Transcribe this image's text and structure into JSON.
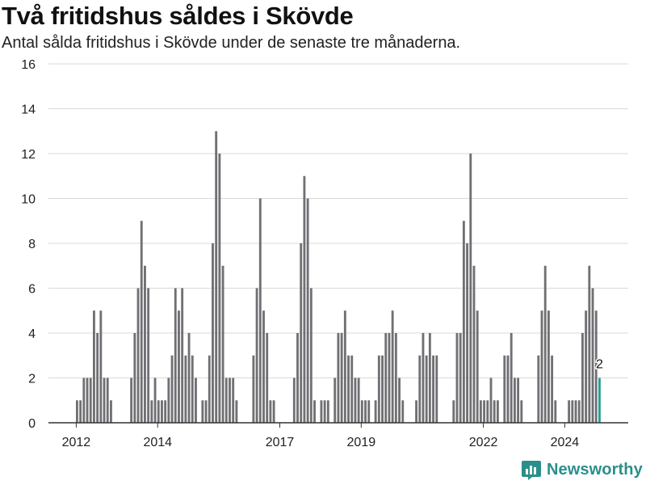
{
  "header": {
    "title": "Två fritidshus såldes i Skövde",
    "subtitle": "Antal sålda fritidshus i Skövde under de senaste tre månaderna."
  },
  "brand": {
    "name": "Newsworthy",
    "icon": "bar-chart-logo-icon"
  },
  "colors": {
    "bar": "#707074",
    "highlight": "#2a9d94",
    "grid": "#d9d9d9",
    "axis": "#333333"
  },
  "chart_data": {
    "type": "bar",
    "title": "Två fritidshus såldes i Skövde",
    "subtitle": "Antal sålda fritidshus i Skövde under de senaste tre månaderna.",
    "xlabel": "",
    "ylabel": "",
    "ylim": [
      0,
      16
    ],
    "yticks": [
      "0",
      "2",
      "4",
      "6",
      "8",
      "10",
      "12",
      "14",
      "16"
    ],
    "xticks": [
      "2012",
      "2014",
      "2017",
      "2019",
      "2022",
      "2024"
    ],
    "grid": true,
    "legend": "none",
    "series": [
      {
        "values": [
          1,
          1,
          2,
          2,
          2,
          5,
          4,
          5,
          2,
          2,
          1,
          0,
          0,
          0,
          0,
          0,
          2,
          4,
          6,
          9,
          7,
          6,
          1,
          2,
          1,
          1,
          1,
          2,
          3,
          6,
          5,
          6,
          3,
          4,
          3,
          2,
          0,
          1,
          1,
          3,
          8,
          13,
          12,
          7,
          2,
          2,
          2,
          1,
          0,
          0,
          0,
          0,
          3,
          6,
          10,
          5,
          4,
          1,
          1,
          0,
          0,
          0,
          0,
          0,
          2,
          4,
          8,
          11,
          10,
          6,
          1,
          0,
          1,
          1,
          1,
          0,
          2,
          4,
          4,
          5,
          3,
          3,
          2,
          2,
          1,
          1,
          1,
          0,
          1,
          3,
          3,
          4,
          4,
          5,
          4,
          2,
          1,
          0,
          0,
          0,
          1,
          3,
          4,
          3,
          4,
          3,
          3,
          0,
          0,
          0,
          0,
          1,
          4,
          4,
          9,
          8,
          12,
          7,
          5,
          1,
          1,
          1,
          2,
          1,
          1,
          0,
          3,
          3,
          4,
          2,
          2,
          1,
          0,
          0,
          0,
          0,
          3,
          5,
          7,
          5,
          3,
          1,
          0,
          0,
          0,
          1,
          1,
          1,
          1,
          4,
          5,
          7,
          6,
          5,
          2
        ]
      }
    ],
    "highlight_label": "2"
  }
}
